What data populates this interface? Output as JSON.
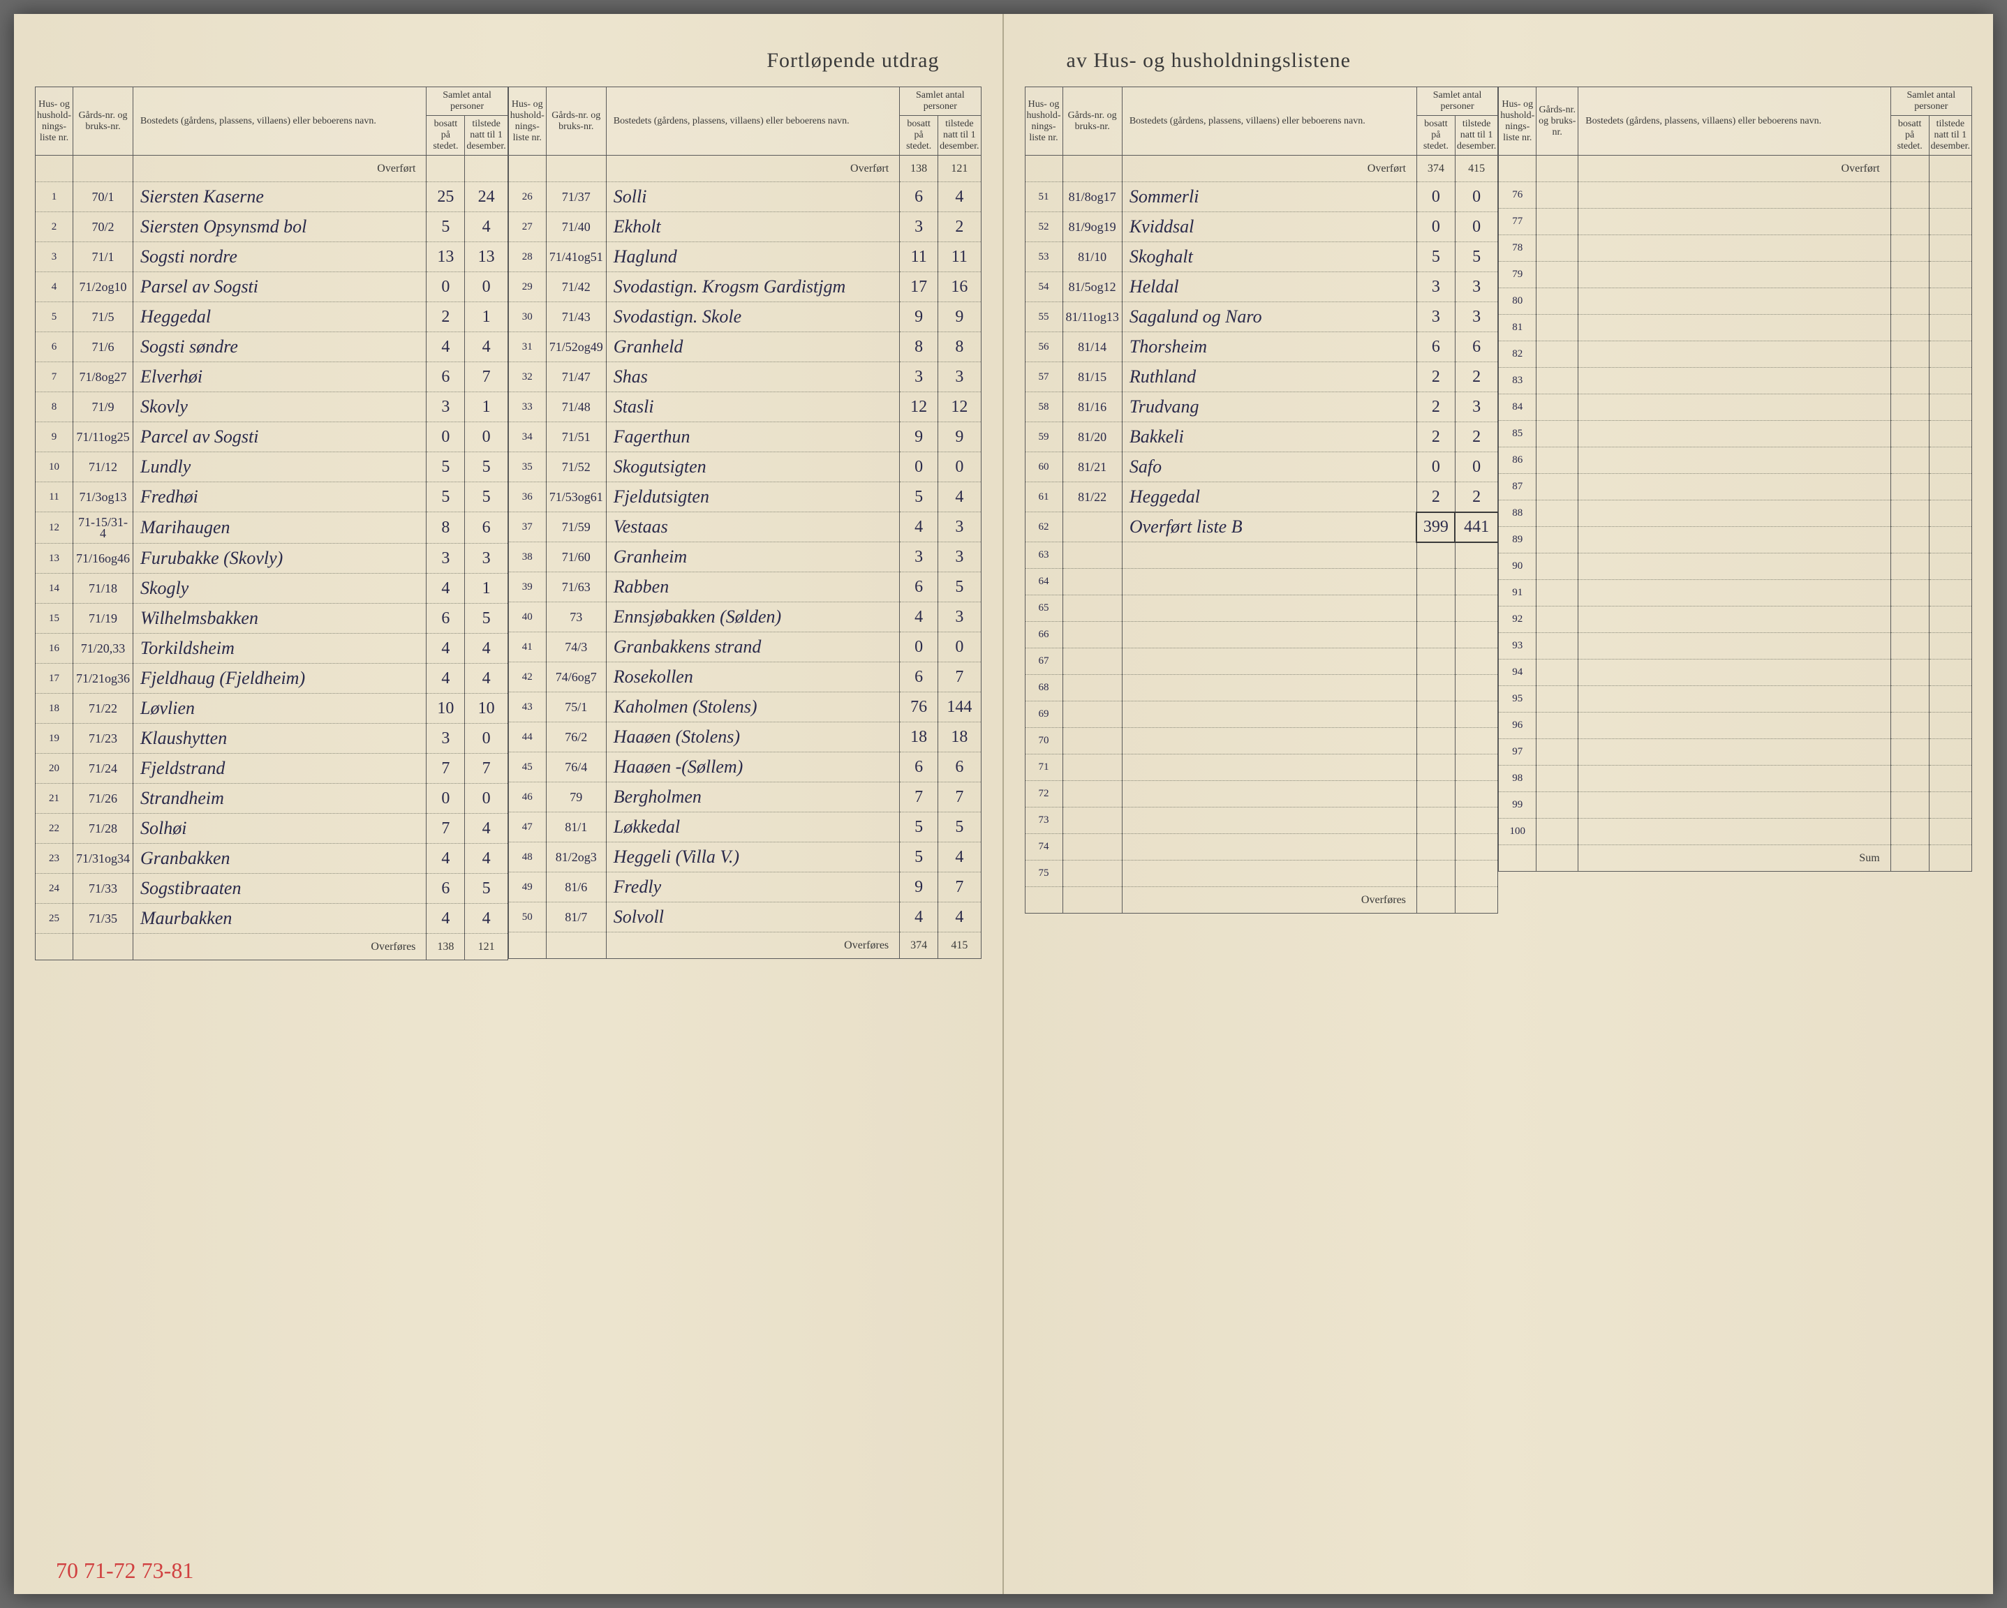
{
  "title_left": "Fortløpende utdrag",
  "title_right": "av Hus- og husholdningslistene",
  "headers": {
    "liste": "Hus- og hushold-nings-liste nr.",
    "gard": "Gårds-nr. og bruks-nr.",
    "bosted": "Bostedets (gårdens, plassens, villaens) eller beboerens navn.",
    "samlet": "Samlet antal personer",
    "bosatt": "bosatt på stedet.",
    "tilstede": "tilstede natt til 1 desember."
  },
  "overfort": "Overført",
  "overfores": "Overføres",
  "sum": "Sum",
  "red_note": "70 71-72 73-81",
  "columns": [
    {
      "overfort_top": [
        "",
        ""
      ],
      "rows": [
        {
          "n": "1",
          "g": "70/1",
          "name": "Siersten Kaserne",
          "b": "25",
          "t": "24"
        },
        {
          "n": "2",
          "g": "70/2",
          "name": "Siersten Opsynsmd bol",
          "b": "5",
          "t": "4"
        },
        {
          "n": "3",
          "g": "71/1",
          "name": "Sogsti nordre",
          "b": "13",
          "t": "13"
        },
        {
          "n": "4",
          "g": "71/2og10",
          "name": "Parsel av Sogsti",
          "b": "0",
          "t": "0"
        },
        {
          "n": "5",
          "g": "71/5",
          "name": "Heggedal",
          "b": "2",
          "t": "1"
        },
        {
          "n": "6",
          "g": "71/6",
          "name": "Sogsti søndre",
          "b": "4",
          "t": "4"
        },
        {
          "n": "7",
          "g": "71/8og27",
          "name": "Elverhøi",
          "b": "6",
          "t": "7"
        },
        {
          "n": "8",
          "g": "71/9",
          "name": "Skovly",
          "b": "3",
          "t": "1"
        },
        {
          "n": "9",
          "g": "71/11og25",
          "name": "Parcel av Sogsti",
          "b": "0",
          "t": "0"
        },
        {
          "n": "10",
          "g": "71/12",
          "name": "Lundly",
          "b": "5",
          "t": "5"
        },
        {
          "n": "11",
          "g": "71/3og13",
          "name": "Fredhøi",
          "b": "5",
          "t": "5"
        },
        {
          "n": "12",
          "g": "71-15/31-4",
          "name": "Marihaugen",
          "b": "8",
          "t": "6"
        },
        {
          "n": "13",
          "g": "71/16og46",
          "name": "Furubakke (Skovly)",
          "b": "3",
          "t": "3"
        },
        {
          "n": "14",
          "g": "71/18",
          "name": "Skogly",
          "b": "4",
          "t": "1"
        },
        {
          "n": "15",
          "g": "71/19",
          "name": "Wilhelmsbakken",
          "b": "6",
          "t": "5"
        },
        {
          "n": "16",
          "g": "71/20,33",
          "name": "Torkildsheim",
          "b": "4",
          "t": "4"
        },
        {
          "n": "17",
          "g": "71/21og36",
          "name": "Fjeldhaug (Fjeldheim)",
          "b": "4",
          "t": "4"
        },
        {
          "n": "18",
          "g": "71/22",
          "name": "Løvlien",
          "b": "10",
          "t": "10"
        },
        {
          "n": "19",
          "g": "71/23",
          "name": "Klaushytten",
          "b": "3",
          "t": "0"
        },
        {
          "n": "20",
          "g": "71/24",
          "name": "Fjeldstrand",
          "b": "7",
          "t": "7"
        },
        {
          "n": "21",
          "g": "71/26",
          "name": "Strandheim",
          "b": "0",
          "t": "0"
        },
        {
          "n": "22",
          "g": "71/28",
          "name": "Solhøi",
          "b": "7",
          "t": "4"
        },
        {
          "n": "23",
          "g": "71/31og34",
          "name": "Granbakken",
          "b": "4",
          "t": "4"
        },
        {
          "n": "24",
          "g": "71/33",
          "name": "Sogstibraaten",
          "b": "6",
          "t": "5"
        },
        {
          "n": "25",
          "g": "71/35",
          "name": "Maurbakken",
          "b": "4",
          "t": "4"
        }
      ],
      "overfores": [
        "138",
        "121"
      ]
    },
    {
      "overfort_top": [
        "138",
        "121"
      ],
      "rows": [
        {
          "n": "26",
          "g": "71/37",
          "name": "Solli",
          "b": "6",
          "t": "4"
        },
        {
          "n": "27",
          "g": "71/40",
          "name": "Ekholt",
          "b": "3",
          "t": "2"
        },
        {
          "n": "28",
          "g": "71/41og51",
          "name": "Haglund",
          "b": "11",
          "t": "11"
        },
        {
          "n": "29",
          "g": "71/42",
          "name": "Svodastign. Krogsm Gardistjgm",
          "b": "17",
          "t": "16"
        },
        {
          "n": "30",
          "g": "71/43",
          "name": "Svodastign. Skole",
          "b": "9",
          "t": "9"
        },
        {
          "n": "31",
          "g": "71/52og49",
          "name": "Granheld",
          "b": "8",
          "t": "8"
        },
        {
          "n": "32",
          "g": "71/47",
          "name": "Shas",
          "b": "3",
          "t": "3"
        },
        {
          "n": "33",
          "g": "71/48",
          "name": "Stasli",
          "b": "12",
          "t": "12"
        },
        {
          "n": "34",
          "g": "71/51",
          "name": "Fagerthun",
          "b": "9",
          "t": "9"
        },
        {
          "n": "35",
          "g": "71/52",
          "name": "Skogutsigten",
          "b": "0",
          "t": "0"
        },
        {
          "n": "36",
          "g": "71/53og61",
          "name": "Fjeldutsigten",
          "b": "5",
          "t": "4"
        },
        {
          "n": "37",
          "g": "71/59",
          "name": "Vestaas",
          "b": "4",
          "t": "3"
        },
        {
          "n": "38",
          "g": "71/60",
          "name": "Granheim",
          "b": "3",
          "t": "3"
        },
        {
          "n": "39",
          "g": "71/63",
          "name": "Rabben",
          "b": "6",
          "t": "5"
        },
        {
          "n": "40",
          "g": "73",
          "name": "Ennsjøbakken (Sølden)",
          "b": "4",
          "t": "3"
        },
        {
          "n": "41",
          "g": "74/3",
          "name": "Granbakkens strand",
          "b": "0",
          "t": "0"
        },
        {
          "n": "42",
          "g": "74/6og7",
          "name": "Rosekollen",
          "b": "6",
          "t": "7"
        },
        {
          "n": "43",
          "g": "75/1",
          "name": "Kaholmen (Stolens)",
          "b": "76",
          "t": "144"
        },
        {
          "n": "44",
          "g": "76/2",
          "name": "Haaøen (Stolens)",
          "b": "18",
          "t": "18"
        },
        {
          "n": "45",
          "g": "76/4",
          "name": "Haaøen -(Søllem)",
          "b": "6",
          "t": "6"
        },
        {
          "n": "46",
          "g": "79",
          "name": "Bergholmen",
          "b": "7",
          "t": "7"
        },
        {
          "n": "47",
          "g": "81/1",
          "name": "Løkkedal",
          "b": "5",
          "t": "5"
        },
        {
          "n": "48",
          "g": "81/2og3",
          "name": "Heggeli (Villa V.)",
          "b": "5",
          "t": "4"
        },
        {
          "n": "49",
          "g": "81/6",
          "name": "Fredly",
          "b": "9",
          "t": "7"
        },
        {
          "n": "50",
          "g": "81/7",
          "name": "Solvoll",
          "b": "4",
          "t": "4"
        }
      ],
      "overfores": [
        "374",
        "415"
      ]
    },
    {
      "overfort_top": [
        "374",
        "415"
      ],
      "rows": [
        {
          "n": "51",
          "g": "81/8og17",
          "name": "Sommerli",
          "b": "0",
          "t": "0"
        },
        {
          "n": "52",
          "g": "81/9og19",
          "name": "Kviddsal",
          "b": "0",
          "t": "0"
        },
        {
          "n": "53",
          "g": "81/10",
          "name": "Skoghalt",
          "b": "5",
          "t": "5"
        },
        {
          "n": "54",
          "g": "81/5og12",
          "name": "Heldal",
          "b": "3",
          "t": "3"
        },
        {
          "n": "55",
          "g": "81/11og13",
          "name": "Sagalund og Naro",
          "b": "3",
          "t": "3"
        },
        {
          "n": "56",
          "g": "81/14",
          "name": "Thorsheim",
          "b": "6",
          "t": "6"
        },
        {
          "n": "57",
          "g": "81/15",
          "name": "Ruthland",
          "b": "2",
          "t": "2"
        },
        {
          "n": "58",
          "g": "81/16",
          "name": "Trudvang",
          "b": "2",
          "t": "3"
        },
        {
          "n": "59",
          "g": "81/20",
          "name": "Bakkeli",
          "b": "2",
          "t": "2"
        },
        {
          "n": "60",
          "g": "81/21",
          "name": "Safo",
          "b": "0",
          "t": "0"
        },
        {
          "n": "61",
          "g": "81/22",
          "name": "Heggedal",
          "b": "2",
          "t": "2"
        },
        {
          "n": "62",
          "g": "",
          "name": "Overført liste B",
          "b": "399",
          "t": "441",
          "box": true
        },
        {
          "n": "63",
          "g": "",
          "name": "",
          "b": "",
          "t": ""
        },
        {
          "n": "64",
          "g": "",
          "name": "",
          "b": "",
          "t": ""
        },
        {
          "n": "65",
          "g": "",
          "name": "",
          "b": "",
          "t": ""
        },
        {
          "n": "66",
          "g": "",
          "name": "",
          "b": "",
          "t": ""
        },
        {
          "n": "67",
          "g": "",
          "name": "",
          "b": "",
          "t": ""
        },
        {
          "n": "68",
          "g": "",
          "name": "",
          "b": "",
          "t": ""
        },
        {
          "n": "69",
          "g": "",
          "name": "",
          "b": "",
          "t": ""
        },
        {
          "n": "70",
          "g": "",
          "name": "",
          "b": "",
          "t": ""
        },
        {
          "n": "71",
          "g": "",
          "name": "",
          "b": "",
          "t": ""
        },
        {
          "n": "72",
          "g": "",
          "name": "",
          "b": "",
          "t": ""
        },
        {
          "n": "73",
          "g": "",
          "name": "",
          "b": "",
          "t": ""
        },
        {
          "n": "74",
          "g": "",
          "name": "",
          "b": "",
          "t": ""
        },
        {
          "n": "75",
          "g": "",
          "name": "",
          "b": "",
          "t": ""
        }
      ],
      "overfores": [
        "",
        ""
      ]
    },
    {
      "overfort_top": [
        "",
        ""
      ],
      "rows": [
        {
          "n": "76",
          "g": "",
          "name": "",
          "b": "",
          "t": ""
        },
        {
          "n": "77",
          "g": "",
          "name": "",
          "b": "",
          "t": ""
        },
        {
          "n": "78",
          "g": "",
          "name": "",
          "b": "",
          "t": ""
        },
        {
          "n": "79",
          "g": "",
          "name": "",
          "b": "",
          "t": ""
        },
        {
          "n": "80",
          "g": "",
          "name": "",
          "b": "",
          "t": ""
        },
        {
          "n": "81",
          "g": "",
          "name": "",
          "b": "",
          "t": ""
        },
        {
          "n": "82",
          "g": "",
          "name": "",
          "b": "",
          "t": ""
        },
        {
          "n": "83",
          "g": "",
          "name": "",
          "b": "",
          "t": ""
        },
        {
          "n": "84",
          "g": "",
          "name": "",
          "b": "",
          "t": ""
        },
        {
          "n": "85",
          "g": "",
          "name": "",
          "b": "",
          "t": ""
        },
        {
          "n": "86",
          "g": "",
          "name": "",
          "b": "",
          "t": ""
        },
        {
          "n": "87",
          "g": "",
          "name": "",
          "b": "",
          "t": ""
        },
        {
          "n": "88",
          "g": "",
          "name": "",
          "b": "",
          "t": ""
        },
        {
          "n": "89",
          "g": "",
          "name": "",
          "b": "",
          "t": ""
        },
        {
          "n": "90",
          "g": "",
          "name": "",
          "b": "",
          "t": ""
        },
        {
          "n": "91",
          "g": "",
          "name": "",
          "b": "",
          "t": ""
        },
        {
          "n": "92",
          "g": "",
          "name": "",
          "b": "",
          "t": ""
        },
        {
          "n": "93",
          "g": "",
          "name": "",
          "b": "",
          "t": ""
        },
        {
          "n": "94",
          "g": "",
          "name": "",
          "b": "",
          "t": ""
        },
        {
          "n": "95",
          "g": "",
          "name": "",
          "b": "",
          "t": ""
        },
        {
          "n": "96",
          "g": "",
          "name": "",
          "b": "",
          "t": ""
        },
        {
          "n": "97",
          "g": "",
          "name": "",
          "b": "",
          "t": ""
        },
        {
          "n": "98",
          "g": "",
          "name": "",
          "b": "",
          "t": ""
        },
        {
          "n": "99",
          "g": "",
          "name": "",
          "b": "",
          "t": ""
        },
        {
          "n": "100",
          "g": "",
          "name": "",
          "b": "",
          "t": ""
        }
      ],
      "overfores": [
        "",
        ""
      ],
      "sum_label": true
    }
  ]
}
